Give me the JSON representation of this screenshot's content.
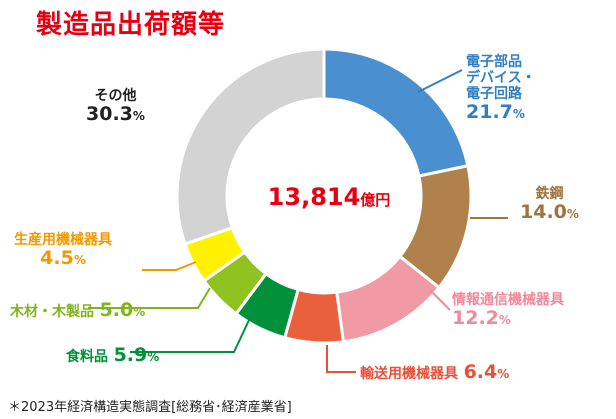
{
  "title": "製造品出荷額等",
  "center": {
    "value": "13,814",
    "unit": "億円"
  },
  "footnote": "＊2023年経済構造実態調査[総務省･経済産業省]",
  "chart_data": {
    "type": "pie",
    "donut": true,
    "title": "製造品出荷額等",
    "unit": "%",
    "categories": [
      "電子部品デバイス・電子回路",
      "鉄鋼",
      "情報通信機械器具",
      "輸送用機械器具",
      "食料品",
      "木材・木製品",
      "生産用機械器具",
      "その他"
    ],
    "values": [
      21.7,
      14.0,
      12.2,
      6.4,
      5.9,
      5.0,
      4.5,
      30.3
    ],
    "colors": [
      "#4a90d0",
      "#b0814a",
      "#f09aa6",
      "#e9603d",
      "#00913a",
      "#8fc31f",
      "#fff100",
      "#d3d3d3"
    ],
    "label_colors": [
      "#2f7fc7",
      "#a0743f",
      "#f08a9a",
      "#e9503a",
      "#00913a",
      "#7fb51a",
      "#f39800",
      "#222222"
    ],
    "labels": [
      {
        "lines": [
          "電子部品",
          "デバイス・",
          "電子回路"
        ],
        "value": "21.7",
        "unit": "%"
      },
      {
        "lines": [
          "鉄鋼"
        ],
        "value": "14.0",
        "unit": "%"
      },
      {
        "lines": [
          "情報通信機械器具"
        ],
        "value": "12.2",
        "unit": "%"
      },
      {
        "lines": [
          "輸送用機械器具"
        ],
        "value": "6.4",
        "unit": "%"
      },
      {
        "lines": [
          "食料品"
        ],
        "value": "5.9",
        "unit": "%"
      },
      {
        "lines": [
          "木材・木製品"
        ],
        "value": "5.0",
        "unit": "%"
      },
      {
        "lines": [
          "生産用機械器具"
        ],
        "value": "4.5",
        "unit": "%"
      },
      {
        "lines": [
          "その他"
        ],
        "value": "30.3",
        "unit": "%"
      }
    ]
  }
}
